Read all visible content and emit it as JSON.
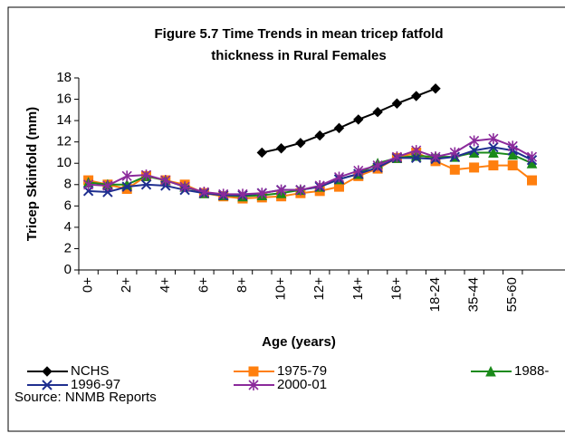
{
  "chart_data": {
    "type": "line",
    "title": [
      "Figure 5.7 Time Trends in mean tricep fatfold",
      "thickness in Rural Females"
    ],
    "x_label": "Age (years)",
    "y_label": "Tricep Skinfold (mm)",
    "source": "Source: NNMB Reports",
    "categories": [
      "0+",
      null,
      "2+",
      null,
      "4+",
      null,
      "6+",
      null,
      "8+",
      null,
      "10+",
      null,
      "12+",
      null,
      "14+",
      null,
      "16+",
      null,
      "18-24",
      null,
      "35-44",
      null,
      "55-60",
      null
    ],
    "ylim": [
      0,
      18
    ],
    "yticks": [
      0,
      2,
      4,
      6,
      8,
      10,
      12,
      14,
      16,
      18
    ],
    "series": [
      {
        "name": "NCHS",
        "color": "#000000",
        "marker": "diamond",
        "values": [
          null,
          null,
          null,
          null,
          null,
          null,
          null,
          null,
          null,
          11,
          11.4,
          11.9,
          12.6,
          13.3,
          14.1,
          14.8,
          15.6,
          16.3,
          17,
          null,
          null,
          null,
          null,
          null
        ]
      },
      {
        "name": "1975-79",
        "color": "#ff7f0e",
        "marker": "square",
        "values": [
          8.4,
          8,
          7.6,
          8.8,
          8.4,
          8,
          7.2,
          6.9,
          6.7,
          6.8,
          6.9,
          7.2,
          7.4,
          7.8,
          8.8,
          9.5,
          10.5,
          11,
          10.2,
          9.4,
          9.6,
          9.8,
          9.8,
          8.4
        ]
      },
      {
        "name": "1988-",
        "color": "#1a8a1a",
        "marker": "triangle",
        "values": [
          8.2,
          8,
          8,
          8.8,
          8.4,
          7.8,
          7.2,
          7,
          6.9,
          7,
          7.2,
          7.5,
          7.8,
          8.5,
          9,
          10,
          10.5,
          10.7,
          10.6,
          10.6,
          11,
          11,
          10.8,
          10
        ]
      },
      {
        "name": "1996-97",
        "color": "#1f2f8f",
        "marker": "x",
        "values": [
          7.4,
          7.3,
          7.8,
          8,
          7.9,
          7.5,
          7.2,
          7,
          7,
          7.2,
          7.5,
          7.5,
          7.8,
          8.5,
          9,
          9.6,
          10.5,
          10.5,
          10.4,
          10.6,
          11.2,
          11.5,
          11.2,
          10.3
        ]
      },
      {
        "name": "2000-01",
        "color": "#8b2a9b",
        "marker": "star",
        "values": [
          8,
          7.9,
          8.8,
          8.9,
          8.4,
          7.8,
          7.3,
          7.1,
          7.1,
          7.2,
          7.5,
          7.5,
          7.9,
          8.7,
          9.3,
          9.8,
          10.6,
          11.2,
          10.6,
          11,
          12.1,
          12.3,
          11.6,
          10.6
        ]
      }
    ]
  }
}
